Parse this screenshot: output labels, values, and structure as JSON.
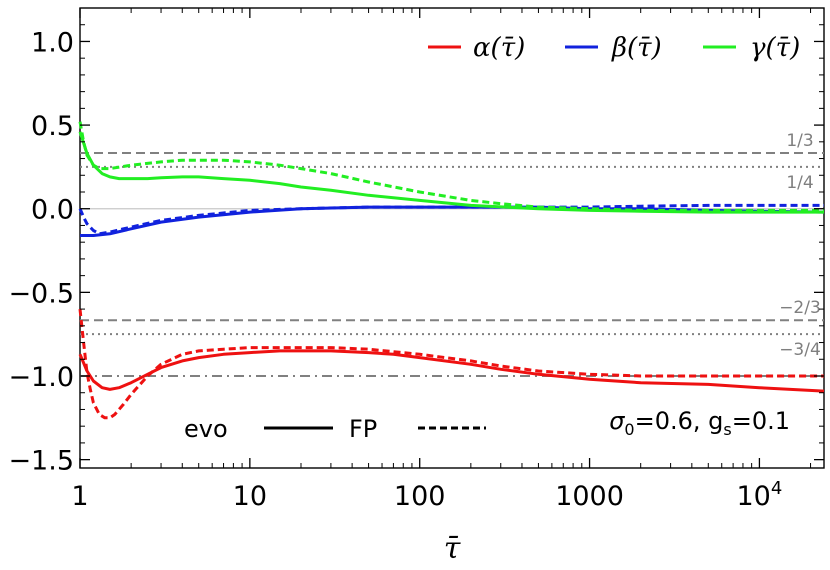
{
  "chart_data": {
    "type": "line",
    "title": "",
    "xlabel": "τ̄",
    "ylabel": "",
    "xscale": "log",
    "xlim": [
      1,
      24000
    ],
    "ylim": [
      -1.55,
      1.2
    ],
    "x_ticks": [
      {
        "value": 1,
        "label": "1"
      },
      {
        "value": 10,
        "label": "10"
      },
      {
        "value": 100,
        "label": "100"
      },
      {
        "value": 1000,
        "label": "1000"
      },
      {
        "value": 10000,
        "label": "10",
        "sup": "4"
      }
    ],
    "y_ticks": [
      {
        "value": 1.0,
        "label": "1.0"
      },
      {
        "value": 0.5,
        "label": "0.5"
      },
      {
        "value": 0.0,
        "label": "0.0"
      },
      {
        "value": -0.5,
        "label": "−0.5"
      },
      {
        "value": -1.0,
        "label": "−1.0"
      },
      {
        "value": -1.5,
        "label": "−1.5"
      }
    ],
    "grid": false,
    "legend_position": "top-right",
    "legend": [
      {
        "label": "α(τ̄)",
        "color": "#ee1111"
      },
      {
        "label": "β(τ̄)",
        "color": "#1122dd"
      },
      {
        "label": "γ(τ̄)",
        "color": "#22ee22"
      }
    ],
    "style_legend": {
      "solid_label": "evo",
      "dashed_label": "FP"
    },
    "annotation": {
      "sigma_prefix": "σ",
      "sigma_sub": "0",
      "sigma_value": "=0.6, g",
      "g_sub": "s",
      "g_value": "=0.1"
    },
    "reference_lines": [
      {
        "y": 0.3333,
        "style": "dashed",
        "label": "1/3"
      },
      {
        "y": 0.25,
        "style": "dotted",
        "label": "1/4"
      },
      {
        "y": -0.6667,
        "style": "dashed",
        "label": "−2/3"
      },
      {
        "y": -0.75,
        "style": "dotted",
        "label": "−3/4"
      },
      {
        "y": -1.0,
        "style": "dashdot",
        "label": ""
      }
    ],
    "series": [
      {
        "name": "α(τ̄)",
        "style": "solid",
        "color": "#ee1111",
        "x": [
          1,
          1.1,
          1.2,
          1.35,
          1.5,
          1.7,
          2,
          2.5,
          3,
          4,
          5,
          7,
          10,
          15,
          20,
          30,
          50,
          70,
          100,
          200,
          300,
          500,
          1000,
          2000,
          5000,
          10000,
          24000
        ],
        "y": [
          -0.87,
          -0.97,
          -1.03,
          -1.07,
          -1.08,
          -1.07,
          -1.04,
          -0.99,
          -0.95,
          -0.91,
          -0.89,
          -0.87,
          -0.86,
          -0.85,
          -0.85,
          -0.85,
          -0.86,
          -0.87,
          -0.89,
          -0.93,
          -0.96,
          -0.99,
          -1.02,
          -1.04,
          -1.05,
          -1.07,
          -1.09
        ]
      },
      {
        "name": "α(τ̄)",
        "style": "dashed",
        "color": "#ee1111",
        "x": [
          1,
          1.05,
          1.1,
          1.15,
          1.2,
          1.3,
          1.4,
          1.5,
          1.6,
          1.8,
          2,
          2.5,
          3,
          4,
          5,
          7,
          10,
          15,
          20,
          30,
          50,
          100,
          200,
          300,
          500,
          1000,
          2000,
          5000,
          10000,
          24000
        ],
        "y": [
          -0.6,
          -0.8,
          -0.98,
          -1.08,
          -1.16,
          -1.23,
          -1.25,
          -1.25,
          -1.23,
          -1.17,
          -1.11,
          -1.0,
          -0.93,
          -0.87,
          -0.85,
          -0.84,
          -0.83,
          -0.83,
          -0.83,
          -0.83,
          -0.84,
          -0.87,
          -0.91,
          -0.94,
          -0.97,
          -0.99,
          -1.0,
          -1.0,
          -1.0,
          -1.0
        ]
      },
      {
        "name": "β(τ̄)",
        "style": "solid",
        "color": "#1122dd",
        "x": [
          1,
          1.2,
          1.5,
          2,
          3,
          5,
          10,
          20,
          50,
          100,
          200,
          500,
          1000,
          2000,
          5000,
          10000,
          24000
        ],
        "y": [
          -0.16,
          -0.16,
          -0.15,
          -0.12,
          -0.08,
          -0.05,
          -0.02,
          0.0,
          0.01,
          0.01,
          0.01,
          0.01,
          0.0,
          0.0,
          -0.01,
          -0.015,
          -0.02
        ]
      },
      {
        "name": "β(τ̄)",
        "style": "dashed",
        "color": "#1122dd",
        "x": [
          1,
          1.05,
          1.1,
          1.2,
          1.3,
          1.5,
          1.8,
          2,
          3,
          5,
          10,
          20,
          50,
          100,
          200,
          500,
          1000,
          2000,
          5000,
          10000,
          24000
        ],
        "y": [
          0.0,
          -0.05,
          -0.09,
          -0.13,
          -0.15,
          -0.14,
          -0.12,
          -0.11,
          -0.07,
          -0.04,
          -0.01,
          0.0,
          0.01,
          0.01,
          0.01,
          0.01,
          0.01,
          0.015,
          0.02,
          0.02,
          0.02
        ]
      },
      {
        "name": "γ(τ̄)",
        "style": "solid",
        "color": "#22ee22",
        "x": [
          1,
          1.1,
          1.2,
          1.35,
          1.5,
          1.7,
          2,
          2.5,
          3,
          4,
          5,
          7,
          10,
          15,
          20,
          30,
          50,
          100,
          200,
          500,
          1000,
          2000,
          5000,
          10000,
          24000
        ],
        "y": [
          0.46,
          0.33,
          0.26,
          0.21,
          0.19,
          0.18,
          0.18,
          0.18,
          0.185,
          0.19,
          0.19,
          0.18,
          0.17,
          0.15,
          0.13,
          0.11,
          0.08,
          0.05,
          0.02,
          0.0,
          -0.01,
          -0.015,
          -0.02,
          -0.02,
          -0.02
        ]
      },
      {
        "name": "γ(τ̄)",
        "style": "dashed",
        "color": "#22ee22",
        "x": [
          1,
          1.05,
          1.1,
          1.2,
          1.3,
          1.5,
          2,
          3,
          4,
          5,
          7,
          10,
          15,
          20,
          30,
          50,
          100,
          200,
          300,
          500,
          1000,
          2000,
          5000,
          10000,
          24000
        ],
        "y": [
          0.52,
          0.4,
          0.32,
          0.26,
          0.24,
          0.24,
          0.26,
          0.28,
          0.29,
          0.29,
          0.29,
          0.28,
          0.26,
          0.24,
          0.21,
          0.16,
          0.1,
          0.05,
          0.03,
          0.01,
          0.0,
          -0.01,
          -0.01,
          -0.01,
          -0.01
        ]
      }
    ]
  }
}
